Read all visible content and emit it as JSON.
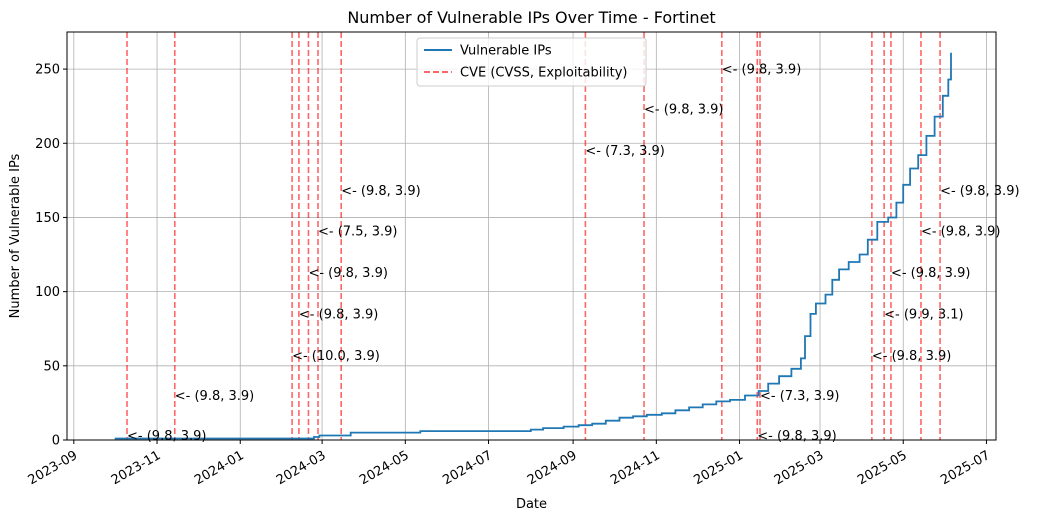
{
  "chart_data": {
    "type": "line",
    "title": "Number of Vulnerable IPs Over Time - Fortinet",
    "xlabel": "Date",
    "ylabel": "Number of Vulnerable IPs",
    "x_axis": "date",
    "xlim": [
      "2023-08-27",
      "2025-07-08"
    ],
    "ylim": [
      0,
      275
    ],
    "grid": true,
    "legend_placement": "upper center",
    "x_ticks": [
      "2023-09-01",
      "2023-11-01",
      "2024-01-01",
      "2024-03-01",
      "2024-05-01",
      "2024-07-01",
      "2024-09-01",
      "2024-11-01",
      "2025-01-01",
      "2025-03-01",
      "2025-05-01",
      "2025-07-01"
    ],
    "x_tick_labels": [
      "2023-09",
      "2023-11",
      "2024-01",
      "2024-03",
      "2024-05",
      "2024-07",
      "2024-09",
      "2024-11",
      "2025-01",
      "2025-03",
      "2025-05",
      "2025-07"
    ],
    "y_ticks": [
      0,
      50,
      100,
      150,
      200,
      250
    ],
    "series": [
      {
        "name": "Vulnerable IPs",
        "color": "#1f77b4",
        "points": [
          [
            "2023-10-01",
            1
          ],
          [
            "2024-02-20",
            1
          ],
          [
            "2024-02-24",
            2
          ],
          [
            "2024-02-28",
            3
          ],
          [
            "2024-03-20",
            3
          ],
          [
            "2024-03-22",
            5
          ],
          [
            "2024-05-10",
            5
          ],
          [
            "2024-05-12",
            6
          ],
          [
            "2024-07-20",
            6
          ],
          [
            "2024-08-01",
            7
          ],
          [
            "2024-08-10",
            8
          ],
          [
            "2024-08-25",
            9
          ],
          [
            "2024-09-05",
            10
          ],
          [
            "2024-09-15",
            11
          ],
          [
            "2024-09-25",
            13
          ],
          [
            "2024-10-05",
            15
          ],
          [
            "2024-10-15",
            16
          ],
          [
            "2024-10-25",
            17
          ],
          [
            "2024-11-05",
            18
          ],
          [
            "2024-11-15",
            20
          ],
          [
            "2024-11-25",
            22
          ],
          [
            "2024-12-05",
            24
          ],
          [
            "2024-12-15",
            26
          ],
          [
            "2024-12-25",
            27
          ],
          [
            "2025-01-05",
            30
          ],
          [
            "2025-01-15",
            33
          ],
          [
            "2025-01-22",
            38
          ],
          [
            "2025-01-30",
            43
          ],
          [
            "2025-02-08",
            48
          ],
          [
            "2025-02-15",
            55
          ],
          [
            "2025-02-18",
            70
          ],
          [
            "2025-02-22",
            85
          ],
          [
            "2025-02-26",
            92
          ],
          [
            "2025-03-05",
            98
          ],
          [
            "2025-03-10",
            108
          ],
          [
            "2025-03-15",
            115
          ],
          [
            "2025-03-22",
            120
          ],
          [
            "2025-03-30",
            125
          ],
          [
            "2025-04-05",
            135
          ],
          [
            "2025-04-12",
            147
          ],
          [
            "2025-04-20",
            150
          ],
          [
            "2025-04-26",
            160
          ],
          [
            "2025-05-01",
            172
          ],
          [
            "2025-05-06",
            183
          ],
          [
            "2025-05-12",
            192
          ],
          [
            "2025-05-18",
            205
          ],
          [
            "2025-05-24",
            218
          ],
          [
            "2025-05-30",
            232
          ],
          [
            "2025-06-03",
            243
          ],
          [
            "2025-06-05",
            261
          ]
        ]
      },
      {
        "name": "CVE (CVSS, Exploitability)",
        "color": "#ff0000",
        "style": "dashed"
      }
    ],
    "cves": [
      {
        "date": "2023-10-10",
        "label": "<- (9.8, 3.9)",
        "y": 3
      },
      {
        "date": "2023-11-14",
        "label": "<- (9.8, 3.9)",
        "y": 30
      },
      {
        "date": "2024-02-08",
        "label": "<- (10.0, 3.9)",
        "y": 57
      },
      {
        "date": "2024-02-13",
        "label": "<- (9.8, 3.9)",
        "y": 85
      },
      {
        "date": "2024-02-20",
        "label": "<- (9.8, 3.9)",
        "y": 113
      },
      {
        "date": "2024-02-27",
        "label": "<- (7.5, 3.9)",
        "y": 141
      },
      {
        "date": "2024-03-15",
        "label": "<- (9.8, 3.9)",
        "y": 168
      },
      {
        "date": "2024-09-10",
        "label": "<- (7.3, 3.9)",
        "y": 195
      },
      {
        "date": "2024-10-23",
        "label": "<- (9.8, 3.9)",
        "y": 223
      },
      {
        "date": "2024-12-19",
        "label": "<- (9.8, 3.9)",
        "y": 250
      },
      {
        "date": "2025-01-14",
        "label": "<- (9.8, 3.9)",
        "y": 3
      },
      {
        "date": "2025-01-16",
        "label": "<- (7.3, 3.9)",
        "y": 30
      },
      {
        "date": "2025-04-08",
        "label": "<- (9.8, 3.9)",
        "y": 57
      },
      {
        "date": "2025-04-17",
        "label": "<- (9.9, 3.1)",
        "y": 85
      },
      {
        "date": "2025-04-22",
        "label": "<- (9.8, 3.9)",
        "y": 113
      },
      {
        "date": "2025-05-14",
        "label": "<- (9.8, 3.9)",
        "y": 141
      },
      {
        "date": "2025-05-28",
        "label": "<- (9.8, 3.9)",
        "y": 168
      }
    ]
  }
}
